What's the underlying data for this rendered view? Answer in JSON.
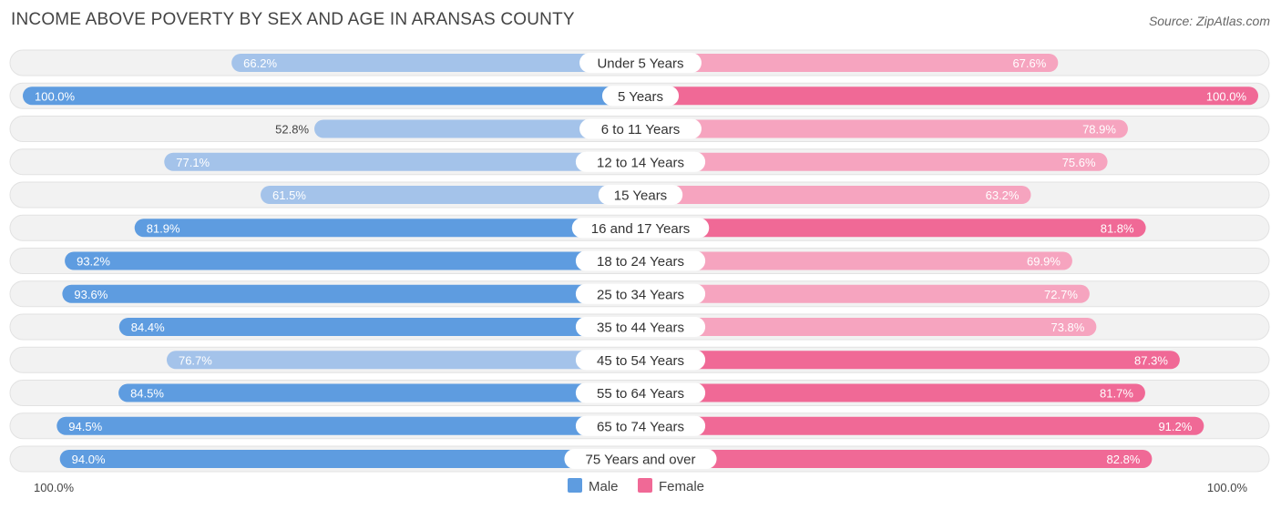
{
  "title": "INCOME ABOVE POVERTY BY SEX AND AGE IN ARANSAS COUNTY",
  "source": "Source: ZipAtlas.com",
  "colors": {
    "male_light": "#a4c3ea",
    "male_strong": "#5e9ce0",
    "female_light": "#f6a4bf",
    "female_strong": "#f06996"
  },
  "chart_data": {
    "type": "bar",
    "title": "INCOME ABOVE POVERTY BY SEX AND AGE IN ARANSAS COUNTY",
    "orientation": "horizontal-diverging",
    "categories": [
      "Under 5 Years",
      "5 Years",
      "6 to 11 Years",
      "12 to 14 Years",
      "15 Years",
      "16 and 17 Years",
      "18 to 24 Years",
      "25 to 34 Years",
      "35 to 44 Years",
      "45 to 54 Years",
      "55 to 64 Years",
      "65 to 74 Years",
      "75 Years and over"
    ],
    "series": [
      {
        "name": "Male",
        "values": [
          66.2,
          100.0,
          52.8,
          77.1,
          61.5,
          81.9,
          93.2,
          93.6,
          84.4,
          76.7,
          84.5,
          94.5,
          94.0
        ]
      },
      {
        "name": "Female",
        "values": [
          67.6,
          100.0,
          78.9,
          75.6,
          63.2,
          81.8,
          69.9,
          72.7,
          73.8,
          87.3,
          81.7,
          91.2,
          82.8
        ]
      }
    ],
    "value_labels": {
      "male": [
        "66.2%",
        "100.0%",
        "52.8%",
        "77.1%",
        "61.5%",
        "81.9%",
        "93.2%",
        "93.6%",
        "84.4%",
        "76.7%",
        "84.5%",
        "94.5%",
        "94.0%"
      ],
      "female": [
        "67.6%",
        "100.0%",
        "78.9%",
        "75.6%",
        "63.2%",
        "81.8%",
        "69.9%",
        "72.7%",
        "73.8%",
        "87.3%",
        "81.7%",
        "91.2%",
        "82.8%"
      ]
    },
    "xlim": [
      0,
      100
    ],
    "axis_left_label": "100.0%",
    "axis_right_label": "100.0%",
    "legend": {
      "position": "bottom-center",
      "items": [
        "Male",
        "Female"
      ]
    }
  }
}
